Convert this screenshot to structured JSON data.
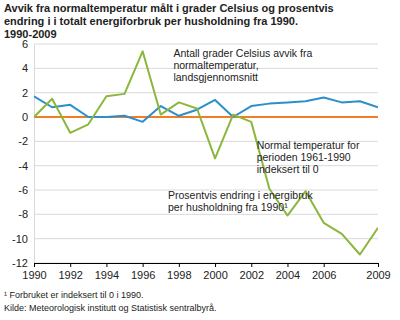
{
  "chart_data": {
    "type": "line",
    "title": "Avvik fra normaltemperatur målt i grader Celsius og prosentvis endring i i totalt energiforbruk per husholdning fra 1990. 1990-2009",
    "footnote": "¹ Forbruket er indeksert til 0 i 1990.",
    "source": "Kilde: Meteorologisk institutt og Statistisk sentralbyrå.",
    "x": [
      1990,
      1991,
      1992,
      1993,
      1994,
      1995,
      1996,
      1997,
      1998,
      1999,
      2000,
      2001,
      2002,
      2003,
      2004,
      2005,
      2006,
      2007,
      2008,
      2009
    ],
    "xlim": [
      1990,
      2009
    ],
    "xticks": [
      1990,
      1992,
      1994,
      1996,
      1998,
      2000,
      2002,
      2004,
      2006,
      2009
    ],
    "ylim": [
      -12,
      6
    ],
    "yticks": [
      -12,
      -10,
      -8,
      -6,
      -4,
      -2,
      0,
      2,
      4,
      6
    ],
    "grid": true,
    "series": [
      {
        "name": "Antall grader Celsius avvik fra normaltemperatur, landsgjennomsnitt",
        "color": "#2b8fcb",
        "values": [
          1.7,
          0.8,
          1.0,
          0.0,
          0.0,
          0.1,
          -0.4,
          0.9,
          0.1,
          0.6,
          1.4,
          0.0,
          0.9,
          1.1,
          1.2,
          1.3,
          1.6,
          1.2,
          1.3,
          0.8
        ]
      },
      {
        "name": "Normal temperatur for perioden 1961-1990 indeksert til 0",
        "color": "#f07e26",
        "values": [
          0,
          0,
          0,
          0,
          0,
          0,
          0,
          0,
          0,
          0,
          0,
          0,
          0,
          0,
          0,
          0,
          0,
          0,
          0,
          0
        ]
      },
      {
        "name": "Prosentvis endring i energibruk per husholdning fra 1990¹",
        "color": "#8cb63c",
        "values": [
          0,
          1.5,
          -1.3,
          -0.6,
          1.7,
          1.9,
          5.4,
          0.2,
          1.2,
          0.7,
          -3.4,
          0.2,
          -0.4,
          -5.9,
          -8.1,
          -6.1,
          -8.7,
          -9.6,
          -11.3,
          -9.1
        ]
      }
    ]
  }
}
